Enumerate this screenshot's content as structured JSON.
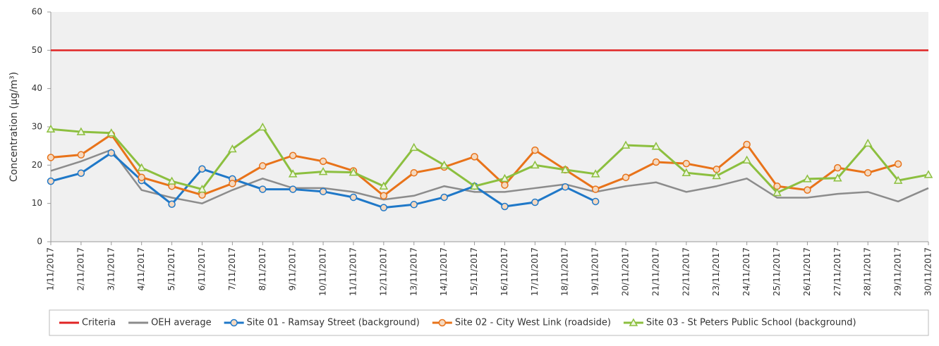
{
  "chart_data": {
    "type": "line",
    "y_label": "Concentration (µg/m³)",
    "categories": [
      "1/11/2017",
      "2/11/2017",
      "3/11/2017",
      "4/11/2017",
      "5/11/2017",
      "6/11/2017",
      "7/11/2017",
      "8/11/2017",
      "9/11/2017",
      "10/11/2017",
      "11/11/2017",
      "12/11/2017",
      "13/11/2017",
      "14/11/2017",
      "15/11/2017",
      "16/11/2017",
      "17/11/2017",
      "18/11/2017",
      "19/11/2017",
      "20/11/2017",
      "21/11/2017",
      "22/11/2017",
      "23/11/2017",
      "24/11/2017",
      "25/11/2017",
      "26/11/2017",
      "27/11/2017",
      "28/11/2017",
      "29/11/2017",
      "30/11/2017"
    ],
    "series": [
      {
        "name": "Criteria",
        "color": "#e02424",
        "marker": "none",
        "values": [
          50,
          50,
          50,
          50,
          50,
          50,
          50,
          50,
          50,
          50,
          50,
          50,
          50,
          50,
          50,
          50,
          50,
          50,
          50,
          50,
          50,
          50,
          50,
          50,
          50,
          50,
          50,
          50,
          50,
          50
        ]
      },
      {
        "name": "OEH average",
        "color": "#8c8c8c",
        "marker": "none",
        "values": [
          18.5,
          21,
          24,
          13.5,
          11.5,
          10,
          13.5,
          16.5,
          14,
          14,
          13,
          11,
          12,
          14.5,
          13,
          13,
          14,
          15,
          13,
          14.5,
          15.5,
          13,
          14.5,
          16.5,
          11.5,
          11.5,
          12.5,
          13,
          10.5,
          14
        ]
      },
      {
        "name": "Site 01 - Ramsay Street (background)",
        "color": "#1f78c8",
        "marker": "circle",
        "values": [
          15.8,
          17.9,
          23.2,
          16,
          9.8,
          19,
          16.4,
          13.7,
          13.7,
          13.1,
          11.6,
          8.9,
          9.7,
          11.6,
          14.5,
          9.2,
          10.3,
          14.3,
          10.5,
          null,
          null,
          null,
          null,
          null,
          null,
          null,
          null,
          null,
          null,
          null
        ]
      },
      {
        "name": "Site 02 - City West Link (roadside)",
        "color": "#e8731a",
        "marker": "circle",
        "values": [
          22,
          22.7,
          28,
          16.8,
          14.5,
          12.2,
          15.2,
          19.8,
          22.5,
          21,
          18.5,
          12,
          18,
          19.5,
          22.2,
          14.8,
          23.9,
          18.8,
          13.7,
          16.8,
          20.8,
          20.4,
          18.9,
          25.4,
          14.5,
          13.5,
          19.3,
          18,
          20.3,
          null
        ]
      },
      {
        "name": "Site 03 - St Peters Public School (background)",
        "color": "#8cbf3f",
        "marker": "triangle",
        "values": [
          29.4,
          28.7,
          28.4,
          19.3,
          15.8,
          13.7,
          24.2,
          29.9,
          17.7,
          18.3,
          18.1,
          14.5,
          24.6,
          20,
          14.5,
          16.5,
          20,
          18.8,
          17.7,
          25.2,
          24.9,
          18,
          17.2,
          21.3,
          12.8,
          16.4,
          16.6,
          25.7,
          16,
          17.5
        ]
      }
    ],
    "ylim": [
      0,
      60
    ],
    "yticks": [
      0,
      10,
      20,
      30,
      40,
      50,
      60
    ],
    "grid": false
  }
}
